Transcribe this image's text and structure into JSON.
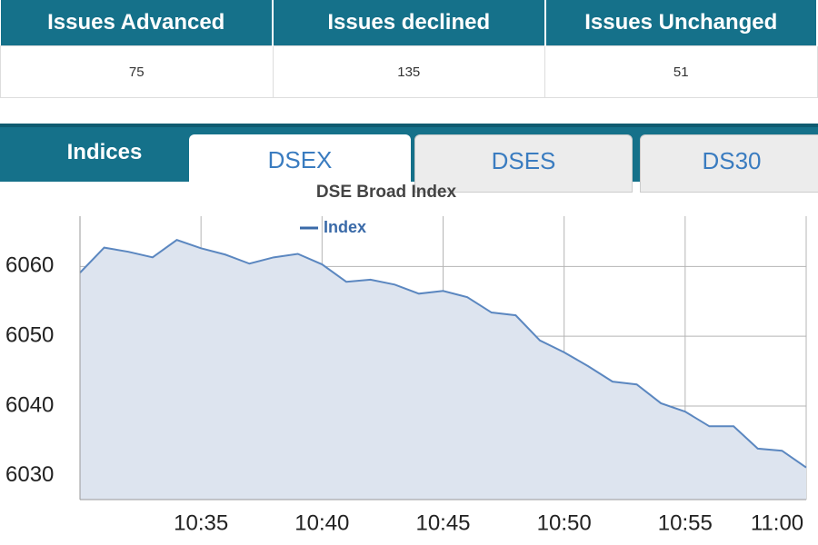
{
  "table": {
    "headers": [
      "Issues Advanced",
      "Issues declined",
      "Issues Unchanged"
    ],
    "values": [
      75,
      135,
      51
    ]
  },
  "tabs": [
    "Indices",
    "DSEX",
    "DSES",
    "DS30"
  ],
  "chart_data": {
    "type": "area",
    "title": "DSE Broad Index",
    "x": [
      "10:30",
      "10:31",
      "10:32",
      "10:33",
      "10:34",
      "10:35",
      "10:36",
      "10:37",
      "10:38",
      "10:39",
      "10:40",
      "10:41",
      "10:42",
      "10:43",
      "10:44",
      "10:45",
      "10:46",
      "10:47",
      "10:48",
      "10:49",
      "10:50",
      "10:51",
      "10:52",
      "10:53",
      "10:54",
      "10:55",
      "10:56",
      "10:57",
      "10:58",
      "10:59",
      "11:00"
    ],
    "series": [
      {
        "name": "Index",
        "color": "#5b87c0",
        "values": [
          6059.1,
          6062.7,
          6062.1,
          6061.3,
          6063.8,
          6062.6,
          6061.7,
          6060.4,
          6061.3,
          6061.8,
          6060.3,
          6057.8,
          6058.1,
          6057.4,
          6056.1,
          6056.5,
          6055.6,
          6053.4,
          6053.0,
          6049.4,
          6047.7,
          6045.7,
          6043.5,
          6043.1,
          6040.4,
          6039.2,
          6037.1,
          6037.1,
          6033.9,
          6033.6,
          6031.2
        ]
      }
    ],
    "xlim": [
      "10:30",
      "11:00"
    ],
    "xticks": [
      "10:35",
      "10:40",
      "10:45",
      "10:50",
      "10:55",
      "11:00"
    ],
    "ylim": [
      6026.6,
      6067.2
    ],
    "yticks": [
      6030,
      6040,
      6050,
      6060
    ],
    "grid": true
  }
}
